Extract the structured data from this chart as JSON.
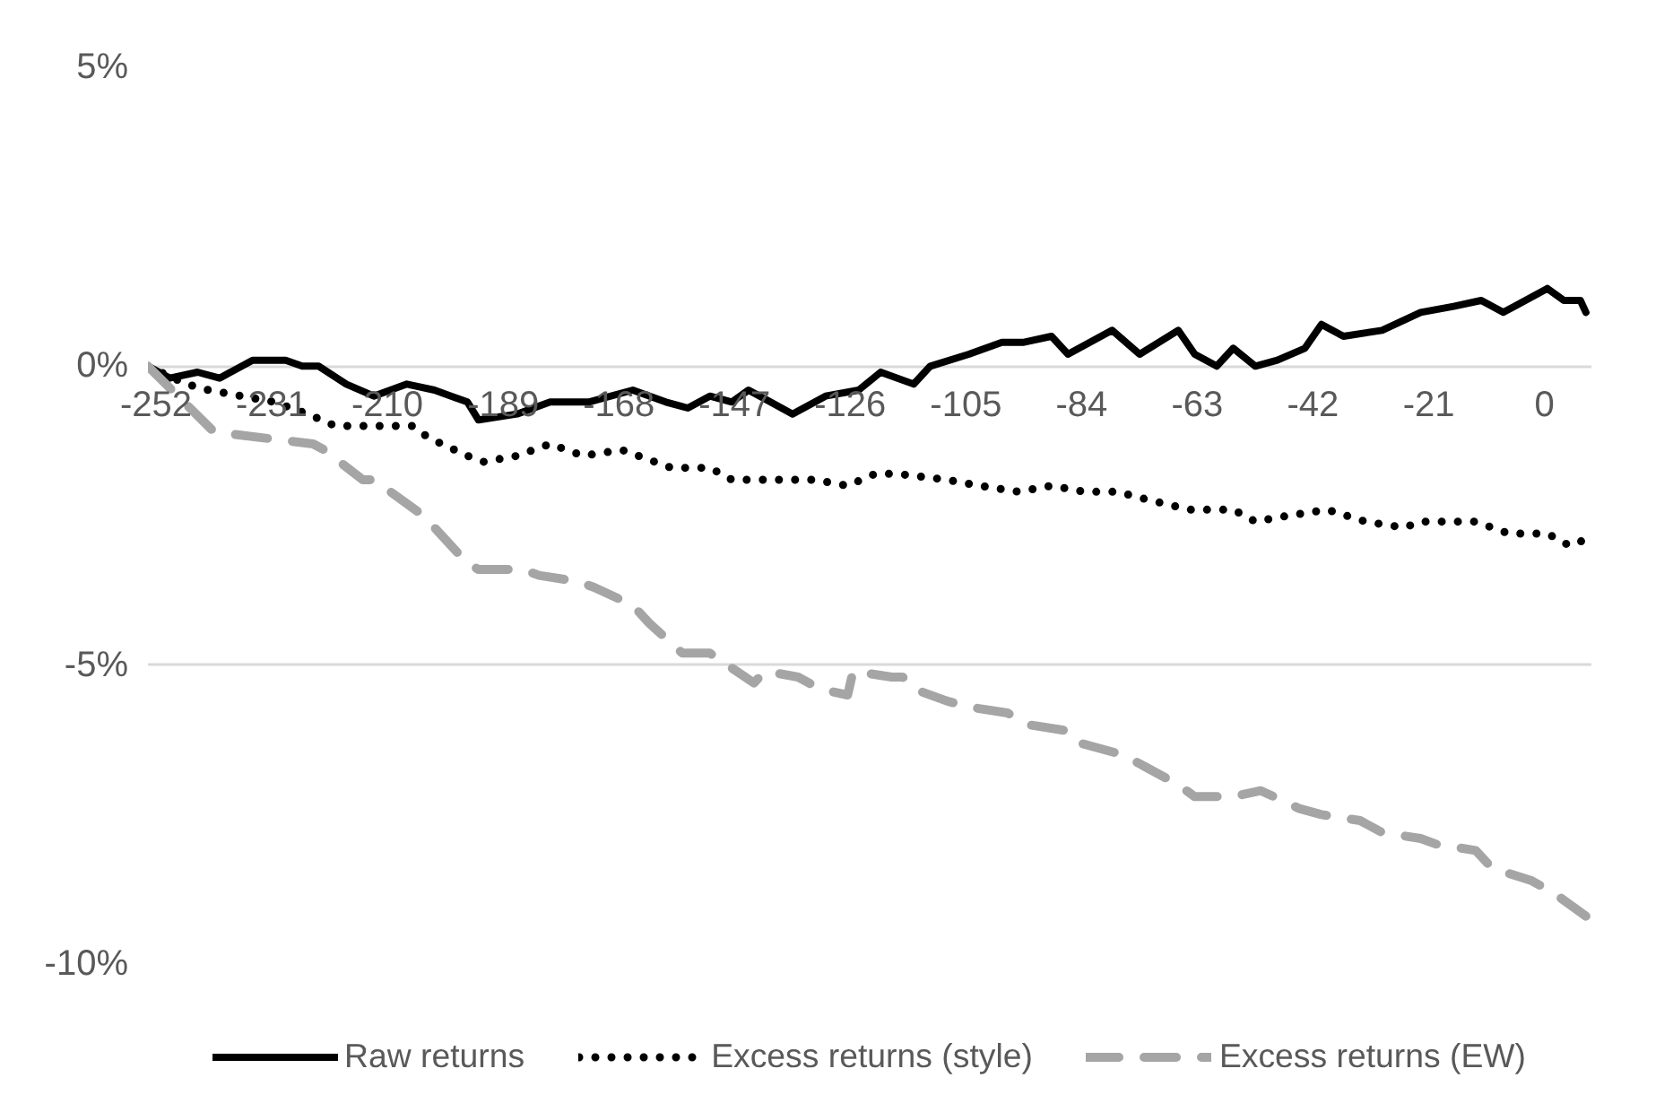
{
  "chart_data": {
    "type": "line",
    "xlim": [
      -252,
      10
    ],
    "xticks": [
      -252,
      -231,
      -210,
      -189,
      -168,
      -147,
      -126,
      -105,
      -84,
      -63,
      -42,
      -21,
      0
    ],
    "ylim": [
      -10,
      5
    ],
    "yticks": [
      {
        "value": 5,
        "label": "5%"
      },
      {
        "value": 0,
        "label": "0%"
      },
      {
        "value": -5,
        "label": "-5%"
      },
      {
        "value": -10,
        "label": "-10%"
      }
    ],
    "grid": "y",
    "legend": "bottom",
    "marker": "none",
    "series": [
      {
        "name": "Raw returns",
        "color": "#000000",
        "line_style": "solid",
        "x": [
          -252,
          -248,
          -243,
          -239,
          -233,
          -227,
          -224,
          -221,
          -216,
          -211,
          -205,
          -200,
          -194,
          -192,
          -185,
          -179,
          -172,
          -164,
          -158,
          -154,
          -150,
          -146,
          -143,
          -139,
          -135,
          -129,
          -123,
          -119,
          -113,
          -110,
          -103,
          -97,
          -93,
          -88,
          -85,
          -77,
          -72,
          -65,
          -62,
          -58,
          -55,
          -51,
          -47,
          -42,
          -39,
          -35,
          -28,
          -21,
          -15,
          -10,
          -6,
          -4,
          2,
          5,
          8,
          9
        ],
        "values": [
          0.0,
          -0.2,
          -0.1,
          -0.2,
          0.1,
          0.1,
          0.0,
          0.0,
          -0.3,
          -0.5,
          -0.3,
          -0.4,
          -0.6,
          -0.9,
          -0.8,
          -0.6,
          -0.6,
          -0.4,
          -0.6,
          -0.7,
          -0.5,
          -0.6,
          -0.4,
          -0.6,
          -0.8,
          -0.5,
          -0.4,
          -0.1,
          -0.3,
          0.0,
          0.2,
          0.4,
          0.4,
          0.5,
          0.2,
          0.6,
          0.2,
          0.6,
          0.2,
          0.0,
          0.3,
          0.0,
          0.1,
          0.3,
          0.7,
          0.5,
          0.6,
          0.9,
          1.0,
          1.1,
          0.9,
          1.0,
          1.3,
          1.1,
          1.1,
          0.9
        ]
      },
      {
        "name": "Excess returns (style)",
        "color": "#000000",
        "line_style": "dotted",
        "x": [
          -252,
          -245,
          -241,
          -235,
          -229,
          -223,
          -218,
          -214,
          -207,
          -204,
          -201,
          -194,
          -191,
          -185,
          -179,
          -173,
          -166,
          -163,
          -157,
          -150,
          -146,
          -140,
          -131,
          -125,
          -120,
          -116,
          -107,
          -101,
          -94,
          -88,
          -82,
          -76,
          -72,
          -63,
          -55,
          -51,
          -45,
          -38,
          -31,
          -24,
          -21,
          -11,
          -8,
          -5,
          2,
          6,
          9
        ],
        "values": [
          0.0,
          -0.3,
          -0.4,
          -0.5,
          -0.6,
          -0.8,
          -1.0,
          -1.0,
          -1.0,
          -1.0,
          -1.2,
          -1.5,
          -1.6,
          -1.5,
          -1.3,
          -1.5,
          -1.4,
          -1.5,
          -1.7,
          -1.7,
          -1.9,
          -1.9,
          -1.9,
          -2.0,
          -1.8,
          -1.8,
          -1.9,
          -2.0,
          -2.1,
          -2.0,
          -2.1,
          -2.1,
          -2.2,
          -2.4,
          -2.4,
          -2.6,
          -2.5,
          -2.4,
          -2.6,
          -2.7,
          -2.6,
          -2.6,
          -2.7,
          -2.8,
          -2.8,
          -3.0,
          -2.9
        ]
      },
      {
        "name": "Excess returns (EW)",
        "color": "#a5a5a5",
        "line_style": "dashed",
        "x": [
          -252,
          -240,
          -222,
          -220,
          -213,
          -211,
          -202,
          -194,
          -192,
          -184,
          -181,
          -174,
          -171,
          -164,
          -161,
          -155,
          -150,
          -142,
          -140,
          -134,
          -130,
          -125,
          -124,
          -117,
          -115,
          -113,
          -107,
          -103,
          -96,
          -92,
          -85,
          -83,
          -75,
          -71,
          -65,
          -62,
          -55,
          -50,
          -43,
          -39,
          -32,
          -28,
          -21,
          -18,
          -11,
          -8,
          -1,
          3,
          9
        ],
        "values": [
          0.0,
          -1.1,
          -1.3,
          -1.4,
          -1.9,
          -1.9,
          -2.5,
          -3.3,
          -3.4,
          -3.4,
          -3.5,
          -3.6,
          -3.7,
          -4.0,
          -4.3,
          -4.8,
          -4.8,
          -5.3,
          -5.1,
          -5.2,
          -5.4,
          -5.5,
          -5.1,
          -5.2,
          -5.2,
          -5.4,
          -5.6,
          -5.7,
          -5.8,
          -6.0,
          -6.1,
          -6.3,
          -6.5,
          -6.7,
          -7.0,
          -7.2,
          -7.2,
          -7.1,
          -7.4,
          -7.5,
          -7.6,
          -7.8,
          -7.9,
          -8.0,
          -8.1,
          -8.4,
          -8.6,
          -8.8,
          -9.2
        ]
      }
    ]
  }
}
